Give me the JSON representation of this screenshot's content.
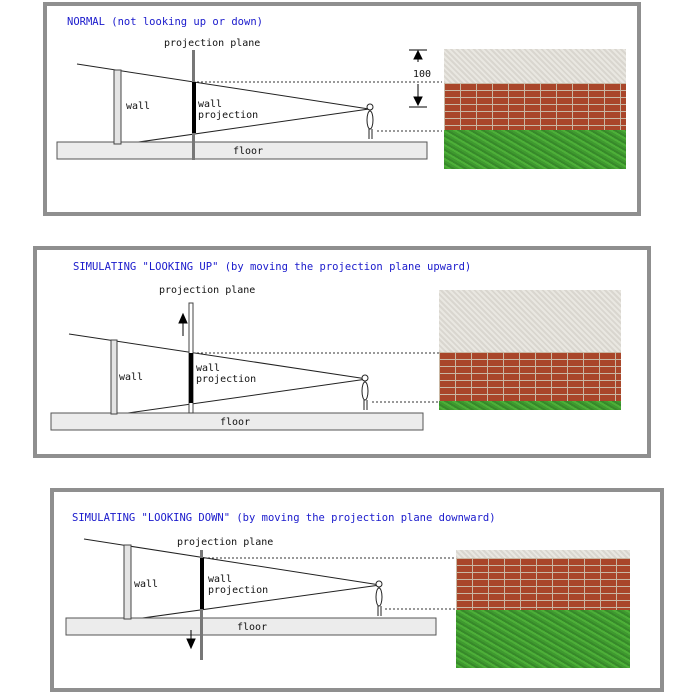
{
  "panels": [
    {
      "title": "NORMAL (not looking up or down)",
      "plane_label": "projection plane",
      "wall_label": "wall",
      "projection_label_1": "wall",
      "projection_label_2": "projection",
      "floor_label": "floor",
      "height_marker": "100",
      "arrow": "none"
    },
    {
      "title": "SIMULATING \"LOOKING UP\" (by moving the projection plane upward)",
      "plane_label": "projection plane",
      "wall_label": "wall",
      "projection_label_1": "wall",
      "projection_label_2": "projection",
      "floor_label": "floor",
      "arrow": "up"
    },
    {
      "title": "SIMULATING \"LOOKING DOWN\" (by moving the projection plane downward)",
      "plane_label": "projection plane",
      "wall_label": "wall",
      "projection_label_1": "wall",
      "projection_label_2": "projection",
      "floor_label": "floor",
      "arrow": "down"
    }
  ],
  "colors": {
    "title": "#1a1acc",
    "panel_border": "#8f8f8f",
    "brick": "#a9462a",
    "grass": "#4daf38",
    "ceiling": "#e3e0da"
  }
}
